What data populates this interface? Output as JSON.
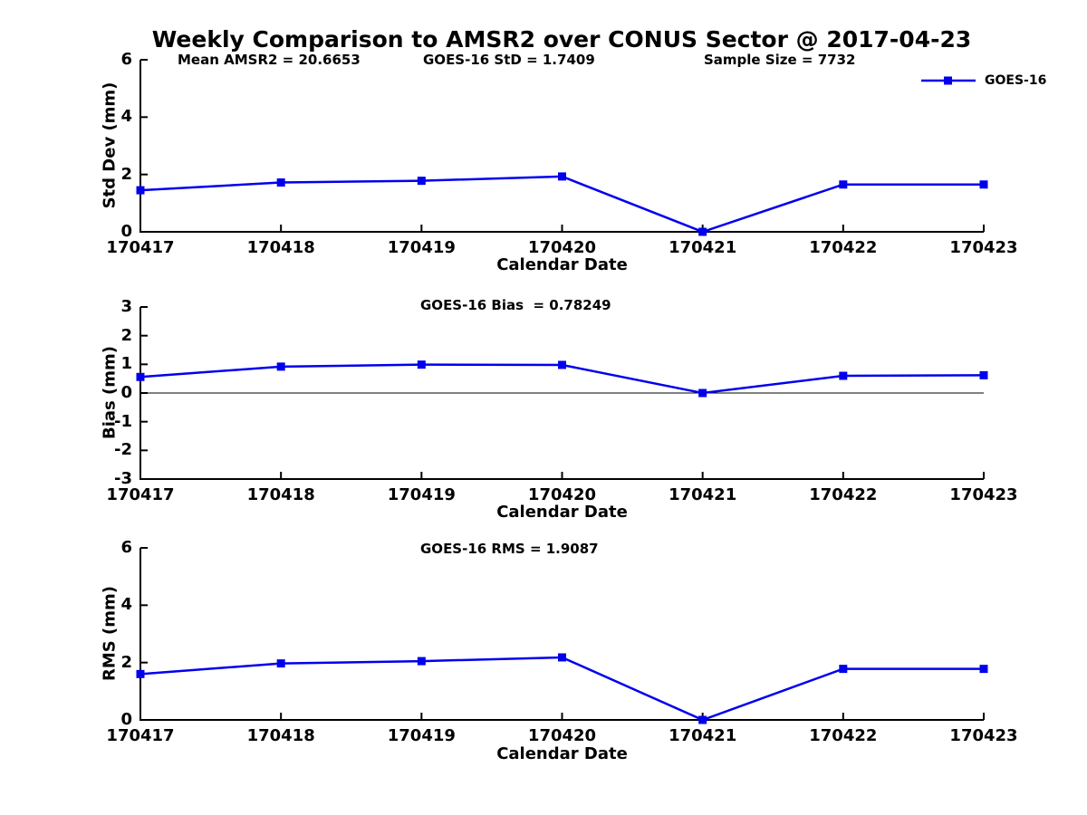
{
  "title": "Weekly Comparison to AMSR2 over CONUS Sector @ 2017-04-23",
  "accent_color": "#0000EE",
  "axis_color": "#000000",
  "legend": {
    "label": "GOES-16",
    "marker": "filled-square"
  },
  "chart_data": [
    {
      "type": "line",
      "name": "std-dev-panel",
      "ylabel": "Std Dev (mm)",
      "xlabel": "Calendar Date",
      "categories": [
        "170417",
        "170418",
        "170419",
        "170420",
        "170421",
        "170422",
        "170423"
      ],
      "series": [
        {
          "name": "GOES-16",
          "color": "#0000EE",
          "values": [
            1.45,
            1.72,
            1.78,
            1.93,
            0.0,
            1.65,
            1.65
          ]
        }
      ],
      "ylim": [
        0,
        6
      ],
      "yticks": [
        0,
        2,
        4,
        6
      ],
      "grid": false,
      "zero_line": false,
      "legend_position": "top-right",
      "annotations": [
        "Mean AMSR2 = 20.6653",
        "GOES-16 StD = 1.7409",
        "Sample Size = 7732"
      ]
    },
    {
      "type": "line",
      "name": "bias-panel",
      "ylabel": "Bias (mm)",
      "xlabel": "Calendar Date",
      "categories": [
        "170417",
        "170418",
        "170419",
        "170420",
        "170421",
        "170422",
        "170423"
      ],
      "series": [
        {
          "name": "GOES-16",
          "color": "#0000EE",
          "values": [
            0.56,
            0.92,
            0.99,
            0.98,
            0.0,
            0.6,
            0.62
          ]
        }
      ],
      "ylim": [
        -3,
        3
      ],
      "yticks": [
        -3,
        -2,
        -1,
        0,
        1,
        2,
        3
      ],
      "grid": false,
      "zero_line": true,
      "annotations": [
        "GOES-16 Bias  = 0.78249"
      ]
    },
    {
      "type": "line",
      "name": "rms-panel",
      "ylabel": "RMS (mm)",
      "xlabel": "Calendar Date",
      "categories": [
        "170417",
        "170418",
        "170419",
        "170420",
        "170421",
        "170422",
        "170423"
      ],
      "series": [
        {
          "name": "GOES-16",
          "color": "#0000EE",
          "values": [
            1.6,
            1.97,
            2.05,
            2.18,
            0.0,
            1.78,
            1.78
          ]
        }
      ],
      "ylim": [
        0,
        6
      ],
      "yticks": [
        0,
        2,
        4,
        6
      ],
      "grid": false,
      "zero_line": false,
      "annotations": [
        "GOES-16 RMS = 1.9087"
      ]
    }
  ]
}
